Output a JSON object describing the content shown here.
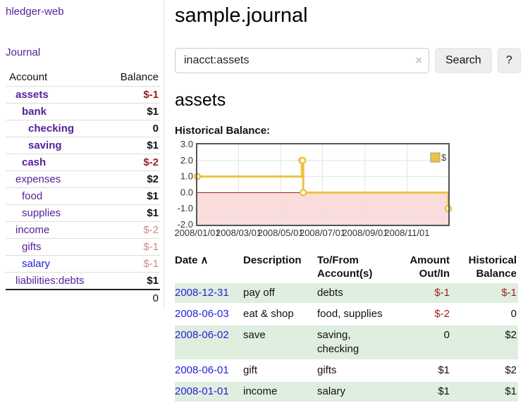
{
  "app": {
    "title": "hledger-web"
  },
  "sidebar": {
    "journal_link": "Journal",
    "headers": {
      "account": "Account",
      "balance": "Balance"
    },
    "rows": [
      {
        "label": "assets",
        "balance": "$-1",
        "indent": 1,
        "label_bold": true,
        "balance_bold": true,
        "balance_color": "neg-strong",
        "link": "purple"
      },
      {
        "label": "bank",
        "balance": "$1",
        "indent": 2,
        "label_bold": true,
        "balance_bold": true,
        "balance_color": "normal",
        "link": "purple"
      },
      {
        "label": "checking",
        "balance": "0",
        "indent": 3,
        "label_bold": true,
        "balance_bold": true,
        "balance_color": "normal",
        "link": "purple"
      },
      {
        "label": "saving",
        "balance": "$1",
        "indent": 3,
        "label_bold": true,
        "balance_bold": true,
        "balance_color": "normal",
        "link": "purple"
      },
      {
        "label": "cash",
        "balance": "$-2",
        "indent": 2,
        "label_bold": true,
        "balance_bold": true,
        "balance_color": "neg-strong",
        "link": "purple"
      },
      {
        "label": "expenses",
        "balance": "$2",
        "indent": 1,
        "label_bold": false,
        "balance_bold": true,
        "balance_color": "normal",
        "link": "purple"
      },
      {
        "label": "food",
        "balance": "$1",
        "indent": 2,
        "label_bold": false,
        "balance_bold": true,
        "balance_color": "normal",
        "link": "purple"
      },
      {
        "label": "supplies",
        "balance": "$1",
        "indent": 2,
        "label_bold": false,
        "balance_bold": true,
        "balance_color": "normal",
        "link": "purple"
      },
      {
        "label": "income",
        "balance": "$-2",
        "indent": 1,
        "label_bold": false,
        "balance_bold": false,
        "balance_color": "neg-muted",
        "link": "purple"
      },
      {
        "label": "gifts",
        "balance": "$-1",
        "indent": 2,
        "label_bold": false,
        "balance_bold": false,
        "balance_color": "neg-muted",
        "link": "purple"
      },
      {
        "label": "salary",
        "balance": "$-1",
        "indent": 2,
        "label_bold": false,
        "balance_bold": false,
        "balance_color": "neg-muted",
        "link": "blue"
      },
      {
        "label": "liabilities:debts",
        "balance": "$1",
        "indent": 1,
        "label_bold": false,
        "balance_bold": true,
        "balance_color": "normal",
        "link": "purple"
      }
    ],
    "total": "0"
  },
  "main": {
    "title": "sample.journal",
    "search": {
      "value": "inacct:assets",
      "clear_glyph": "×",
      "button_label": "Search",
      "help_label": "?"
    },
    "account_heading": "assets",
    "chart_label": "Historical Balance:"
  },
  "chart_data": {
    "type": "line",
    "subtype": "step",
    "title": "Historical Balance",
    "legend": [
      {
        "label": "$",
        "color": "#edc240"
      }
    ],
    "legend_position": "top-right",
    "xlim_days": [
      0,
      365
    ],
    "ylim": [
      -2,
      3
    ],
    "grid": true,
    "y_ticks": [
      {
        "v": 3,
        "label": "3.0"
      },
      {
        "v": 2,
        "label": "2.0"
      },
      {
        "v": 1,
        "label": "1.0"
      },
      {
        "v": 0,
        "label": "0.0"
      },
      {
        "v": -1,
        "label": "-1.0"
      },
      {
        "v": -2,
        "label": "-2.0"
      }
    ],
    "x_ticks": [
      {
        "day": 0,
        "label": "2008/01/01"
      },
      {
        "day": 60,
        "label": "2008/03/01"
      },
      {
        "day": 121,
        "label": "2008/05/01"
      },
      {
        "day": 182,
        "label": "2008/07/01"
      },
      {
        "day": 244,
        "label": "2008/09/01"
      },
      {
        "day": 305,
        "label": "2008/11/01"
      }
    ],
    "series": [
      {
        "name": "$",
        "points": [
          {
            "day": 0,
            "y": 1
          },
          {
            "day": 152,
            "y": 2
          },
          {
            "day": 153,
            "y": 2
          },
          {
            "day": 154,
            "y": 0
          },
          {
            "day": 365,
            "y": -1
          }
        ]
      }
    ],
    "colors": {
      "line": "#edc240",
      "marker_fill": "#ffffff",
      "negative_fill": "#fbdcdc",
      "zero_line": "#8e1a1a",
      "grid_line": "#e4e4e4",
      "border": "#545454",
      "tick_text": "#333333"
    }
  },
  "transactions": {
    "headers": {
      "date": "Date",
      "sort_glyph": "∧",
      "description": "Description",
      "tofrom_line1": "To/From",
      "tofrom_line2": "Account(s)",
      "amount_line1": "Amount",
      "amount_line2": "Out/In",
      "balance_line1": "Historical",
      "balance_line2": "Balance"
    },
    "rows": [
      {
        "date": "2008-12-31",
        "description": "pay off",
        "accounts": "debts",
        "amount": "$-1",
        "amount_neg": true,
        "balance": "$-1",
        "balance_neg": true,
        "shaded": true
      },
      {
        "date": "2008-06-03",
        "description": "eat & shop",
        "accounts": "food, supplies",
        "amount": "$-2",
        "amount_neg": true,
        "balance": "0",
        "balance_neg": false,
        "shaded": false
      },
      {
        "date": "2008-06-02",
        "description": "save",
        "accounts": "saving, checking",
        "amount": "0",
        "amount_neg": false,
        "balance": "$2",
        "balance_neg": false,
        "shaded": true
      },
      {
        "date": "2008-06-01",
        "description": "gift",
        "accounts": "gifts",
        "amount": "$1",
        "amount_neg": false,
        "balance": "$2",
        "balance_neg": false,
        "shaded": false
      },
      {
        "date": "2008-01-01",
        "description": "income",
        "accounts": "salary",
        "amount": "$1",
        "amount_neg": false,
        "balance": "$1",
        "balance_neg": false,
        "shaded": true
      }
    ]
  }
}
